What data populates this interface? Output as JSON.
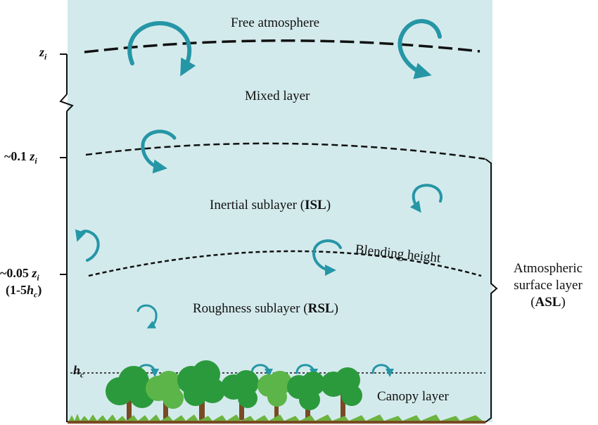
{
  "layers": {
    "free_atmosphere": "Free atmosphere",
    "mixed_layer": "Mixed layer",
    "isl_prefix": "Inertial sublayer (",
    "isl_abbr": "ISL",
    "isl_suffix": ")",
    "blending_height": "Blending height",
    "rsl_prefix": "Roughness sublayer (",
    "rsl_abbr": "RSL",
    "rsl_suffix": ")",
    "canopy_layer": "Canopy layer"
  },
  "axis": {
    "zi_symbol": "z",
    "zi_sub": "i",
    "tenth_prefix": "~0.1 ",
    "twentieth_prefix": "~0.05 ",
    "hc_range_prefix": "(1-5",
    "hc_symbol": "h",
    "hc_sub": "c",
    "hc_range_suffix": ")"
  },
  "asl": {
    "line1": "Atmospheric",
    "line2": "surface layer",
    "line3_prefix": "(",
    "line3_abbr": "ASL",
    "line3_suffix": ")"
  },
  "colors": {
    "sky": "#d3eaec",
    "eddy": "#2596a6",
    "tree_dark": "#2b9a3c",
    "tree_light": "#5cb548",
    "trunk": "#7a4a24",
    "grass": "#6cb33f"
  }
}
